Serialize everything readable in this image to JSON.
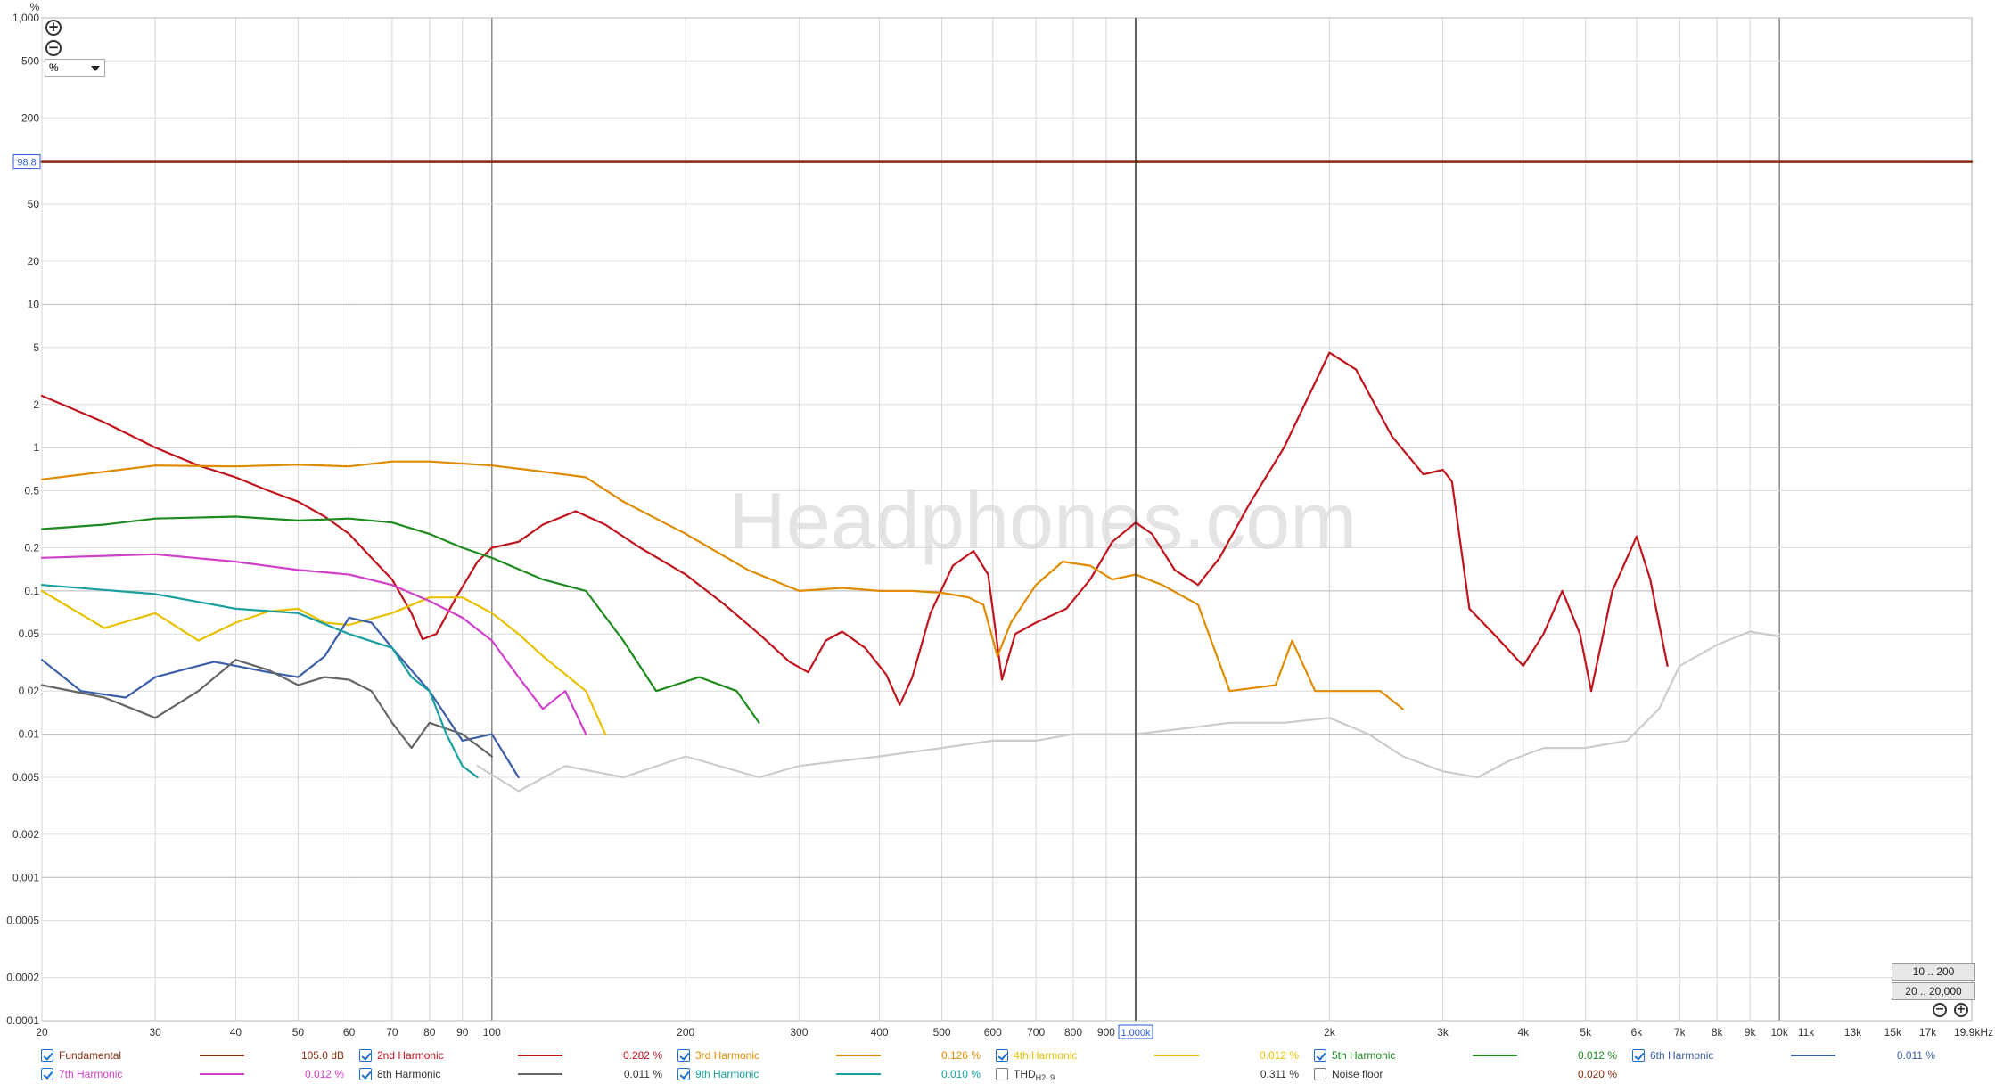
{
  "chart_data": {
    "type": "line",
    "title": "",
    "watermark": "Headphones.com",
    "xlabel": "",
    "ylabel": "%",
    "x_scale": "log",
    "y_scale": "log",
    "xlim": [
      20,
      19900
    ],
    "ylim": [
      0.0001,
      1000
    ],
    "x_tick_labels": [
      {
        "v": 20,
        "t": "20"
      },
      {
        "v": 30,
        "t": "30"
      },
      {
        "v": 40,
        "t": "40"
      },
      {
        "v": 50,
        "t": "50"
      },
      {
        "v": 60,
        "t": "60"
      },
      {
        "v": 70,
        "t": "70"
      },
      {
        "v": 80,
        "t": "80"
      },
      {
        "v": 90,
        "t": "90"
      },
      {
        "v": 100,
        "t": "100"
      },
      {
        "v": 200,
        "t": "200"
      },
      {
        "v": 300,
        "t": "300"
      },
      {
        "v": 400,
        "t": "400"
      },
      {
        "v": 500,
        "t": "500"
      },
      {
        "v": 600,
        "t": "600"
      },
      {
        "v": 700,
        "t": "700"
      },
      {
        "v": 800,
        "t": "800"
      },
      {
        "v": 900,
        "t": "900"
      },
      {
        "v": 2000,
        "t": "2k"
      },
      {
        "v": 3000,
        "t": "3k"
      },
      {
        "v": 4000,
        "t": "4k"
      },
      {
        "v": 5000,
        "t": "5k"
      },
      {
        "v": 6000,
        "t": "6k"
      },
      {
        "v": 7000,
        "t": "7k"
      },
      {
        "v": 8000,
        "t": "8k"
      },
      {
        "v": 9000,
        "t": "9k"
      },
      {
        "v": 10000,
        "t": "10k"
      },
      {
        "v": 11000,
        "t": "11k"
      },
      {
        "v": 13000,
        "t": "13k"
      },
      {
        "v": 15000,
        "t": "15k"
      },
      {
        "v": 17000,
        "t": "17k"
      },
      {
        "v": 19900,
        "t": "19.9kHz"
      }
    ],
    "y_tick_labels": [
      {
        "v": 1000,
        "t": "1,000"
      },
      {
        "v": 500,
        "t": "500"
      },
      {
        "v": 200,
        "t": "200"
      },
      {
        "v": 50,
        "t": "50"
      },
      {
        "v": 20,
        "t": "20"
      },
      {
        "v": 10,
        "t": "10"
      },
      {
        "v": 5,
        "t": "5"
      },
      {
        "v": 2,
        "t": "2"
      },
      {
        "v": 1,
        "t": "1"
      },
      {
        "v": 0.5,
        "t": "0.5"
      },
      {
        "v": 0.2,
        "t": "0.2"
      },
      {
        "v": 0.1,
        "t": "0.1"
      },
      {
        "v": 0.05,
        "t": "0.05"
      },
      {
        "v": 0.02,
        "t": "0.02"
      },
      {
        "v": 0.01,
        "t": "0.01"
      },
      {
        "v": 0.005,
        "t": "0.005"
      },
      {
        "v": 0.002,
        "t": "0.002"
      },
      {
        "v": 0.001,
        "t": "0.001"
      },
      {
        "v": 0.0005,
        "t": "0.0005"
      },
      {
        "v": 0.0002,
        "t": "0.0002"
      },
      {
        "v": 0.0001,
        "t": "0.0001"
      }
    ],
    "cursor_x": {
      "value": 1000,
      "label": "1.000k"
    },
    "cursor_y": {
      "value": 98.8,
      "label": "98.8"
    },
    "grid": true,
    "legend_position": "bottom",
    "series": [
      {
        "name": "Fundamental",
        "color": "#8b2e10",
        "value_label": "105.0 dB",
        "points": [
          [
            20,
            98.8
          ],
          [
            19900,
            98.8
          ]
        ]
      },
      {
        "name": "2nd Harmonic",
        "color": "#c0141c",
        "value_label": "0.282 %",
        "points": [
          [
            20,
            2.3
          ],
          [
            25,
            1.5
          ],
          [
            30,
            1.0
          ],
          [
            35,
            0.75
          ],
          [
            40,
            0.62
          ],
          [
            45,
            0.5
          ],
          [
            50,
            0.42
          ],
          [
            55,
            0.33
          ],
          [
            60,
            0.25
          ],
          [
            65,
            0.17
          ],
          [
            70,
            0.12
          ],
          [
            75,
            0.07
          ],
          [
            78,
            0.046
          ],
          [
            82,
            0.05
          ],
          [
            88,
            0.09
          ],
          [
            95,
            0.16
          ],
          [
            100,
            0.2
          ],
          [
            110,
            0.22
          ],
          [
            120,
            0.29
          ],
          [
            135,
            0.36
          ],
          [
            150,
            0.29
          ],
          [
            170,
            0.2
          ],
          [
            200,
            0.13
          ],
          [
            230,
            0.08
          ],
          [
            260,
            0.05
          ],
          [
            290,
            0.032
          ],
          [
            310,
            0.027
          ],
          [
            330,
            0.045
          ],
          [
            350,
            0.052
          ],
          [
            380,
            0.04
          ],
          [
            410,
            0.026
          ],
          [
            430,
            0.016
          ],
          [
            450,
            0.025
          ],
          [
            480,
            0.07
          ],
          [
            520,
            0.15
          ],
          [
            560,
            0.19
          ],
          [
            590,
            0.13
          ],
          [
            620,
            0.024
          ],
          [
            650,
            0.05
          ],
          [
            700,
            0.06
          ],
          [
            780,
            0.075
          ],
          [
            850,
            0.12
          ],
          [
            920,
            0.22
          ],
          [
            1000,
            0.3
          ],
          [
            1060,
            0.25
          ],
          [
            1150,
            0.14
          ],
          [
            1250,
            0.11
          ],
          [
            1350,
            0.17
          ],
          [
            1500,
            0.4
          ],
          [
            1700,
            1.0
          ],
          [
            2000,
            4.6
          ],
          [
            2200,
            3.5
          ],
          [
            2500,
            1.2
          ],
          [
            2800,
            0.65
          ],
          [
            3000,
            0.7
          ],
          [
            3100,
            0.58
          ],
          [
            3300,
            0.075
          ],
          [
            3600,
            0.05
          ],
          [
            4000,
            0.03
          ],
          [
            4300,
            0.05
          ],
          [
            4600,
            0.1
          ],
          [
            4900,
            0.05
          ],
          [
            5100,
            0.02
          ],
          [
            5500,
            0.1
          ],
          [
            6000,
            0.24
          ],
          [
            6300,
            0.12
          ],
          [
            6700,
            0.03
          ]
        ]
      },
      {
        "name": "3rd Harmonic",
        "color": "#e08a00",
        "value_label": "0.126 %",
        "points": [
          [
            20,
            0.6
          ],
          [
            30,
            0.75
          ],
          [
            40,
            0.74
          ],
          [
            50,
            0.76
          ],
          [
            60,
            0.74
          ],
          [
            70,
            0.8
          ],
          [
            80,
            0.8
          ],
          [
            100,
            0.75
          ],
          [
            120,
            0.68
          ],
          [
            140,
            0.62
          ],
          [
            160,
            0.42
          ],
          [
            200,
            0.25
          ],
          [
            250,
            0.14
          ],
          [
            300,
            0.1
          ],
          [
            350,
            0.105
          ],
          [
            400,
            0.1
          ],
          [
            450,
            0.1
          ],
          [
            500,
            0.097
          ],
          [
            550,
            0.09
          ],
          [
            580,
            0.08
          ],
          [
            610,
            0.035
          ],
          [
            640,
            0.06
          ],
          [
            700,
            0.11
          ],
          [
            770,
            0.16
          ],
          [
            850,
            0.15
          ],
          [
            920,
            0.12
          ],
          [
            1000,
            0.13
          ],
          [
            1100,
            0.11
          ],
          [
            1250,
            0.08
          ],
          [
            1400,
            0.02
          ],
          [
            1650,
            0.022
          ],
          [
            1750,
            0.045
          ],
          [
            1900,
            0.02
          ],
          [
            2200,
            0.02
          ],
          [
            2400,
            0.02
          ],
          [
            2600,
            0.015
          ]
        ]
      },
      {
        "name": "4th Harmonic",
        "color": "#e8c000",
        "value_label": "0.012 %",
        "points": [
          [
            20,
            0.1
          ],
          [
            25,
            0.055
          ],
          [
            30,
            0.07
          ],
          [
            35,
            0.045
          ],
          [
            40,
            0.06
          ],
          [
            45,
            0.072
          ],
          [
            50,
            0.075
          ],
          [
            55,
            0.06
          ],
          [
            60,
            0.058
          ],
          [
            70,
            0.07
          ],
          [
            80,
            0.09
          ],
          [
            90,
            0.09
          ],
          [
            100,
            0.07
          ],
          [
            110,
            0.05
          ],
          [
            120,
            0.035
          ],
          [
            140,
            0.02
          ],
          [
            150,
            0.01
          ]
        ]
      },
      {
        "name": "5th Harmonic",
        "color": "#1f8a1f",
        "value_label": "0.012 %",
        "points": [
          [
            20,
            0.27
          ],
          [
            25,
            0.29
          ],
          [
            30,
            0.32
          ],
          [
            40,
            0.33
          ],
          [
            50,
            0.31
          ],
          [
            60,
            0.32
          ],
          [
            70,
            0.3
          ],
          [
            80,
            0.25
          ],
          [
            90,
            0.2
          ],
          [
            100,
            0.17
          ],
          [
            120,
            0.12
          ],
          [
            140,
            0.1
          ],
          [
            160,
            0.045
          ],
          [
            180,
            0.02
          ],
          [
            210,
            0.025
          ],
          [
            240,
            0.02
          ],
          [
            260,
            0.012
          ]
        ]
      },
      {
        "name": "6th Harmonic",
        "color": "#3b5ea8",
        "value_label": "0.011 %",
        "points": [
          [
            20,
            0.033
          ],
          [
            23,
            0.02
          ],
          [
            27,
            0.018
          ],
          [
            30,
            0.025
          ],
          [
            33,
            0.028
          ],
          [
            37,
            0.032
          ],
          [
            40,
            0.03
          ],
          [
            45,
            0.027
          ],
          [
            50,
            0.025
          ],
          [
            55,
            0.035
          ],
          [
            60,
            0.065
          ],
          [
            65,
            0.06
          ],
          [
            70,
            0.04
          ],
          [
            80,
            0.02
          ],
          [
            90,
            0.009
          ],
          [
            100,
            0.01
          ],
          [
            110,
            0.005
          ]
        ]
      },
      {
        "name": "7th Harmonic",
        "color": "#d040c8",
        "value_label": "0.012 %",
        "points": [
          [
            20,
            0.17
          ],
          [
            30,
            0.18
          ],
          [
            40,
            0.16
          ],
          [
            50,
            0.14
          ],
          [
            60,
            0.13
          ],
          [
            70,
            0.11
          ],
          [
            80,
            0.085
          ],
          [
            90,
            0.065
          ],
          [
            100,
            0.045
          ],
          [
            110,
            0.025
          ],
          [
            120,
            0.015
          ],
          [
            130,
            0.02
          ],
          [
            140,
            0.01
          ]
        ]
      },
      {
        "name": "8th Harmonic",
        "color": "#666666",
        "value_label": "0.011 %",
        "points": [
          [
            20,
            0.022
          ],
          [
            25,
            0.018
          ],
          [
            30,
            0.013
          ],
          [
            35,
            0.02
          ],
          [
            40,
            0.033
          ],
          [
            45,
            0.028
          ],
          [
            50,
            0.022
          ],
          [
            55,
            0.025
          ],
          [
            60,
            0.024
          ],
          [
            65,
            0.02
          ],
          [
            70,
            0.012
          ],
          [
            75,
            0.008
          ],
          [
            80,
            0.012
          ],
          [
            90,
            0.01
          ],
          [
            100,
            0.007
          ]
        ]
      },
      {
        "name": "9th Harmonic",
        "color": "#1aa0a0",
        "value_label": "0.010 %",
        "points": [
          [
            20,
            0.11
          ],
          [
            30,
            0.095
          ],
          [
            40,
            0.075
          ],
          [
            50,
            0.07
          ],
          [
            60,
            0.05
          ],
          [
            70,
            0.04
          ],
          [
            75,
            0.025
          ],
          [
            80,
            0.02
          ],
          [
            85,
            0.01
          ],
          [
            90,
            0.006
          ],
          [
            95,
            0.005
          ]
        ]
      },
      {
        "name": "THD",
        "name_sub": "H2..9",
        "color": "#cccccc",
        "value_label": "0.311 %",
        "points": [
          [
            95,
            0.006
          ],
          [
            110,
            0.004
          ],
          [
            130,
            0.006
          ],
          [
            160,
            0.005
          ],
          [
            200,
            0.007
          ],
          [
            260,
            0.005
          ],
          [
            300,
            0.006
          ],
          [
            400,
            0.007
          ],
          [
            500,
            0.008
          ],
          [
            600,
            0.009
          ],
          [
            700,
            0.009
          ],
          [
            800,
            0.01
          ],
          [
            1000,
            0.01
          ],
          [
            1200,
            0.011
          ],
          [
            1400,
            0.012
          ],
          [
            1700,
            0.012
          ],
          [
            2000,
            0.013
          ],
          [
            2300,
            0.01
          ],
          [
            2600,
            0.007
          ],
          [
            3000,
            0.0055
          ],
          [
            3400,
            0.005
          ],
          [
            3800,
            0.0065
          ],
          [
            4300,
            0.008
          ],
          [
            5000,
            0.008
          ],
          [
            5800,
            0.009
          ],
          [
            6500,
            0.015
          ],
          [
            7000,
            0.03
          ],
          [
            8000,
            0.042
          ],
          [
            9000,
            0.052
          ],
          [
            10000,
            0.048
          ]
        ]
      },
      {
        "name": "Noise floor",
        "color": "#d8d8d8",
        "value_label": "0.020 %",
        "points": []
      }
    ],
    "enabled": [
      true,
      true,
      true,
      true,
      true,
      true,
      true,
      true,
      true,
      false,
      false
    ]
  },
  "controls": {
    "unit_label": "%",
    "zoom_in_icon": "plus-circle-icon",
    "zoom_out_icon": "minus-circle-icon",
    "range_btn_1": "10 .. 200",
    "range_btn_2": "20 .. 20,000"
  }
}
